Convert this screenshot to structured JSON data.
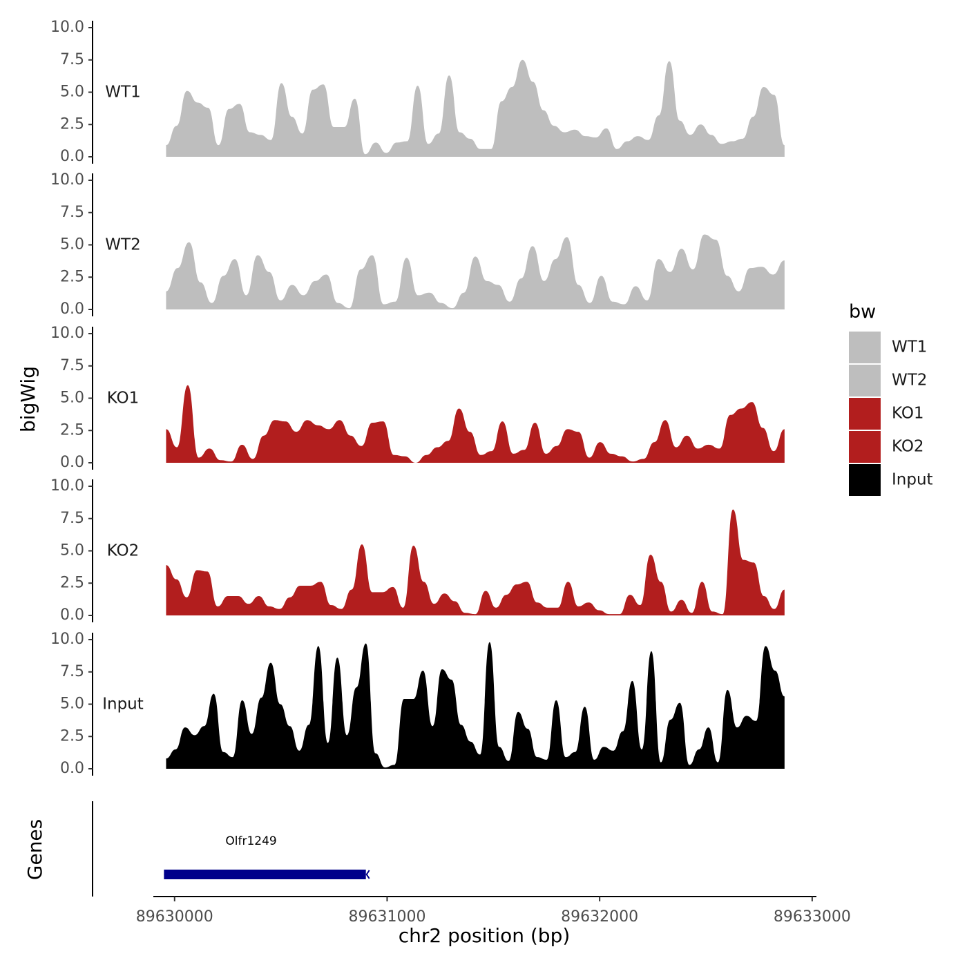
{
  "chart_data": {
    "type": "area",
    "ylabel": "bigWig",
    "xlabel": "chr2 position (bp)",
    "xlim": [
      89629900,
      89633020
    ],
    "data_range": [
      89629960,
      89632870
    ],
    "ylim": [
      0,
      10
    ],
    "y_ticks": [
      "0.0",
      "2.5",
      "5.0",
      "7.5",
      "10.0"
    ],
    "x_ticks": [
      {
        "value": 89630000,
        "label": "89630000"
      },
      {
        "value": 89631000,
        "label": "89631000"
      },
      {
        "value": 89632000,
        "label": "89632000"
      },
      {
        "value": 89633000,
        "label": "89633000"
      }
    ],
    "legend": {
      "title": "bw",
      "entries": [
        {
          "name": "WT1",
          "color": "#bebebe"
        },
        {
          "name": "WT2",
          "color": "#bebebe"
        },
        {
          "name": "KO1",
          "color": "#b21e1e"
        },
        {
          "name": "KO2",
          "color": "#b21e1e"
        },
        {
          "name": "Input",
          "color": "#000000"
        }
      ]
    },
    "series": [
      {
        "name": "WT1",
        "color": "#bebebe",
        "values": [
          0.9,
          2.4,
          5.1,
          4.2,
          3.8,
          0.9,
          3.7,
          4.1,
          1.9,
          1.7,
          1.3,
          5.7,
          3.1,
          1.8,
          5.2,
          5.6,
          2.3,
          2.3,
          4.5,
          0.2,
          1.1,
          0.3,
          1.1,
          1.2,
          5.5,
          1.0,
          1.8,
          6.3,
          1.9,
          1.4,
          0.6,
          0.6,
          4.3,
          5.4,
          7.5,
          5.8,
          3.6,
          2.4,
          1.9,
          2.1,
          1.6,
          1.5,
          2.2,
          0.6,
          1.2,
          1.6,
          1.3,
          3.2,
          7.4,
          2.8,
          1.7,
          2.5,
          1.7,
          1.0,
          1.2,
          1.4,
          3.1,
          5.4,
          4.8,
          0.9
        ]
      },
      {
        "name": "WT2",
        "color": "#bebebe",
        "values": [
          1.4,
          3.2,
          5.2,
          2.1,
          0.5,
          2.6,
          3.9,
          1.1,
          4.2,
          2.9,
          0.7,
          1.9,
          1.1,
          2.2,
          2.7,
          0.5,
          0.1,
          3.1,
          4.2,
          0.4,
          0.6,
          4.0,
          1.1,
          1.3,
          0.5,
          0.1,
          1.3,
          4.1,
          2.2,
          1.9,
          0.6,
          2.4,
          4.9,
          2.2,
          3.9,
          5.6,
          1.9,
          0.5,
          2.6,
          0.6,
          0.4,
          1.8,
          0.7,
          3.9,
          2.9,
          4.7,
          3.1,
          5.8,
          5.4,
          2.6,
          1.4,
          3.2,
          3.3,
          2.7,
          3.8
        ]
      },
      {
        "name": "KO1",
        "color": "#b21e1e",
        "values": [
          2.6,
          1.2,
          6.0,
          0.4,
          1.1,
          0.2,
          0.1,
          1.4,
          0.3,
          2.1,
          3.3,
          3.2,
          2.4,
          3.3,
          2.9,
          2.6,
          3.3,
          2.1,
          1.3,
          3.1,
          3.2,
          0.6,
          0.5,
          0.0,
          0.6,
          1.2,
          1.7,
          4.2,
          2.4,
          0.6,
          0.9,
          3.2,
          0.7,
          1.0,
          3.1,
          0.7,
          1.3,
          2.6,
          2.4,
          0.4,
          1.6,
          0.7,
          0.5,
          0.1,
          0.3,
          1.6,
          3.3,
          1.2,
          2.1,
          1.1,
          1.4,
          1.1,
          3.7,
          4.2,
          4.7,
          2.7,
          0.9,
          2.6
        ]
      },
      {
        "name": "KO2",
        "color": "#b21e1e",
        "values": [
          3.9,
          2.8,
          1.4,
          3.5,
          3.4,
          0.7,
          1.5,
          1.5,
          0.9,
          1.5,
          0.7,
          0.5,
          1.4,
          2.3,
          2.3,
          2.6,
          0.8,
          0.5,
          2.0,
          5.5,
          1.8,
          1.8,
          2.2,
          0.6,
          5.4,
          2.6,
          0.9,
          1.7,
          1.1,
          0.2,
          0.1,
          1.9,
          0.6,
          1.6,
          2.4,
          2.6,
          1.0,
          0.6,
          0.6,
          2.6,
          0.7,
          1.0,
          0.4,
          0.1,
          0.1,
          1.6,
          0.8,
          4.7,
          2.6,
          0.3,
          1.2,
          0.2,
          2.6,
          0.3,
          0.1,
          8.2,
          4.3,
          4.1,
          1.5,
          0.5,
          2.0
        ]
      },
      {
        "name": "Input",
        "color": "#000000",
        "values": [
          0.8,
          1.5,
          3.2,
          2.6,
          3.3,
          5.8,
          1.3,
          0.9,
          5.3,
          2.7,
          5.5,
          8.2,
          5.0,
          3.3,
          1.4,
          3.4,
          9.5,
          2.0,
          8.6,
          2.6,
          6.3,
          9.7,
          1.2,
          0.1,
          0.3,
          5.4,
          5.4,
          7.6,
          3.3,
          7.7,
          6.9,
          3.4,
          2.1,
          1.1,
          9.8,
          1.7,
          0.6,
          4.4,
          3.1,
          0.9,
          0.7,
          5.3,
          0.9,
          1.3,
          4.8,
          0.7,
          1.7,
          1.4,
          2.9,
          6.8,
          1.5,
          9.1,
          0.5,
          3.8,
          5.1,
          0.3,
          1.5,
          3.2,
          0.5,
          6.1,
          3.2,
          4.1,
          3.7,
          9.5,
          7.6,
          5.6
        ]
      }
    ],
    "genes_track": {
      "title": "Genes",
      "genes": [
        {
          "name": "Olfr1249",
          "start": 89629950,
          "end": 89630900,
          "strand": "-",
          "color": "#00008b"
        }
      ]
    }
  }
}
